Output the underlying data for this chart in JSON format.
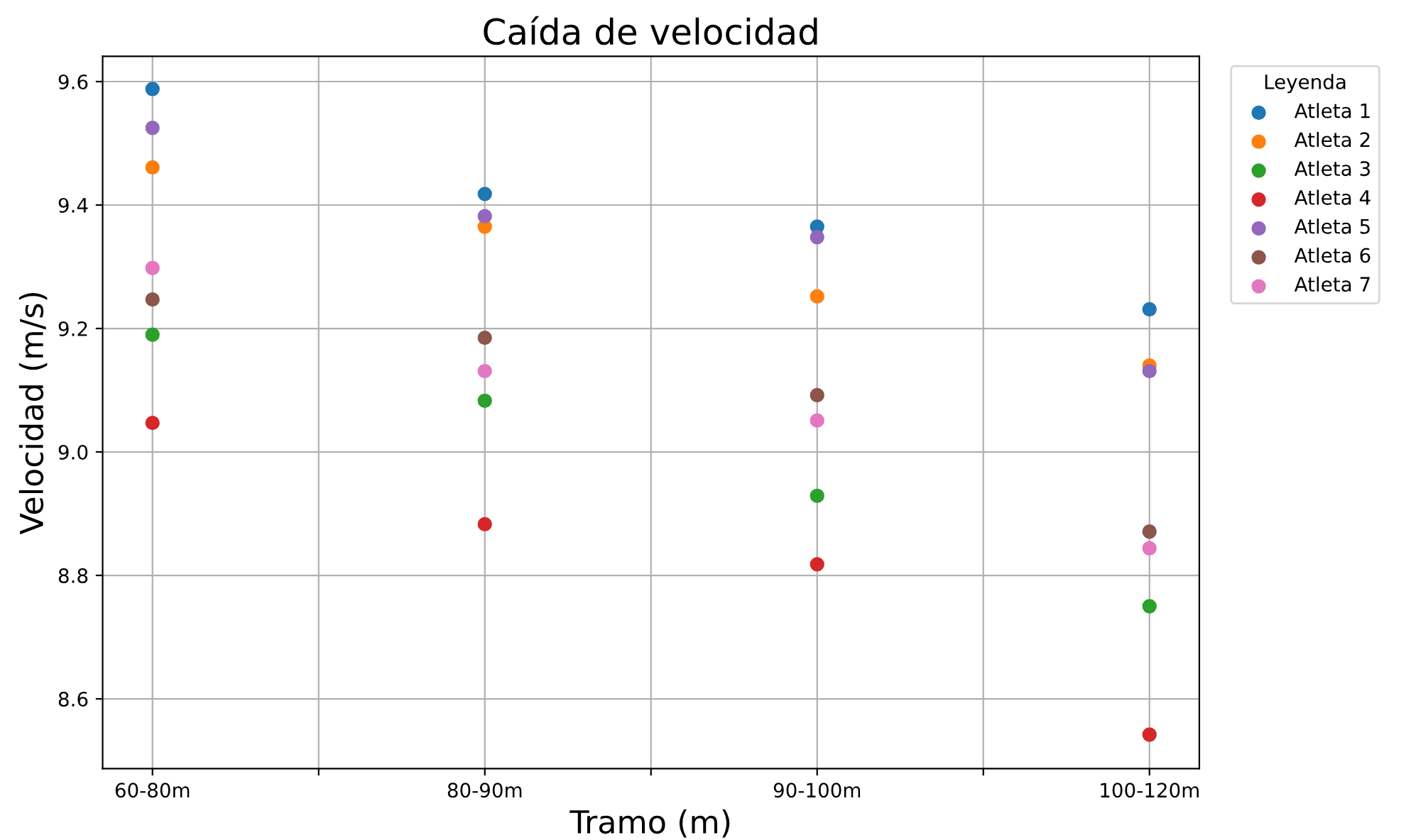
{
  "chart_data": {
    "type": "scatter",
    "title": "Caída de velocidad",
    "xlabel": "Tramo (m)",
    "ylabel": "Velocidad (m/s)",
    "legend_title": "Leyenda",
    "categories": [
      "60-80m",
      null,
      "80-90m",
      null,
      "90-100m",
      null,
      "100-120m"
    ],
    "ylim": [
      8.487,
      9.641
    ],
    "yticks": [
      {
        "value": 8.6,
        "label": "8.6"
      },
      {
        "value": 8.8,
        "label": "8.8"
      },
      {
        "value": 9.0,
        "label": "9.0"
      },
      {
        "value": 9.2,
        "label": "9.2"
      },
      {
        "value": 9.4,
        "label": "9.4"
      },
      {
        "value": 9.6,
        "label": "9.6"
      }
    ],
    "grid": true,
    "legend": "top right",
    "marker": "circle",
    "series": [
      {
        "name": "Atleta 1",
        "color": "#1f77b4",
        "values": [
          9.588,
          null,
          9.418,
          null,
          9.365,
          null,
          9.231
        ]
      },
      {
        "name": "Atleta 2",
        "color": "#ff7f0e",
        "values": [
          9.461,
          null,
          9.365,
          null,
          9.252,
          null,
          9.14
        ]
      },
      {
        "name": "Atleta 3",
        "color": "#2ca02c",
        "values": [
          9.19,
          null,
          9.083,
          null,
          8.929,
          null,
          8.75
        ]
      },
      {
        "name": "Atleta 4",
        "color": "#d62728",
        "values": [
          9.047,
          null,
          8.883,
          null,
          8.818,
          null,
          8.542
        ]
      },
      {
        "name": "Atleta 5",
        "color": "#9467bd",
        "values": [
          9.525,
          null,
          9.382,
          null,
          9.348,
          null,
          9.131
        ]
      },
      {
        "name": "Atleta 6",
        "color": "#8c564b",
        "values": [
          9.247,
          null,
          9.185,
          null,
          9.092,
          null,
          8.871
        ]
      },
      {
        "name": "Atleta 7",
        "color": "#e377c2",
        "values": [
          9.298,
          null,
          9.131,
          null,
          9.051,
          null,
          8.844
        ]
      }
    ]
  }
}
